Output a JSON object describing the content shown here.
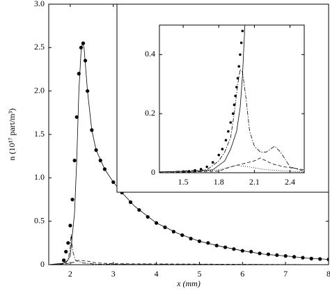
{
  "chart_data": [
    {
      "type": "line",
      "xlabel": "x (mm)",
      "ylabel": "n (10¹⁷ part/m³)",
      "xlim": [
        1.5,
        8
      ],
      "ylim": [
        0,
        3
      ],
      "xticks": [
        2,
        3,
        4,
        5,
        6,
        7,
        8
      ],
      "yticks": [
        0,
        0.5,
        {
          "value": 1,
          "label": "1.0"
        },
        1.5,
        {
          "value": 2,
          "label": "2.0"
        },
        2.5,
        {
          "value": 3,
          "label": "3.0"
        }
      ],
      "series": [
        {
          "style": "solid",
          "color": "#000000",
          "x": [
            1.5,
            1.9,
            2.0,
            2.1,
            2.15,
            2.2,
            2.25,
            2.28,
            2.32,
            2.4,
            2.5,
            2.6,
            2.8,
            3.0,
            3.2,
            3.5,
            4.0,
            4.5,
            5.0,
            5.5,
            6.0,
            6.5,
            7.0,
            7.5,
            8.0
          ],
          "values": [
            0,
            0.02,
            0.1,
            0.6,
            1.2,
            2.0,
            2.45,
            2.55,
            2.5,
            2.0,
            1.55,
            1.32,
            1.1,
            0.95,
            0.83,
            0.67,
            0.48,
            0.36,
            0.27,
            0.21,
            0.16,
            0.12,
            0.1,
            0.075,
            0.06
          ]
        },
        {
          "style": "dots",
          "color": "#000000",
          "x": [
            1.85,
            1.9,
            1.95,
            2.0,
            2.05,
            2.1,
            2.15,
            2.2,
            2.25,
            2.3,
            2.35,
            2.4,
            2.5,
            2.6,
            2.7,
            2.8,
            3.0,
            3.2,
            3.4,
            3.6,
            3.8,
            4.0,
            4.2,
            4.4,
            4.6,
            4.8,
            5.0,
            5.2,
            5.4,
            5.6,
            5.8,
            6.0,
            6.2,
            6.4,
            6.6,
            6.8,
            7.0,
            7.2,
            7.4,
            7.6,
            7.8,
            8.0
          ],
          "values": [
            0.05,
            0.15,
            0.25,
            0.45,
            0.75,
            1.2,
            1.7,
            2.2,
            2.5,
            2.55,
            2.35,
            2.0,
            1.55,
            1.32,
            1.2,
            1.1,
            0.95,
            0.83,
            0.72,
            0.63,
            0.55,
            0.48,
            0.43,
            0.38,
            0.34,
            0.3,
            0.27,
            0.25,
            0.22,
            0.2,
            0.18,
            0.16,
            0.15,
            0.13,
            0.12,
            0.11,
            0.1,
            0.09,
            0.08,
            0.07,
            0.065,
            0.06
          ]
        },
        {
          "style": "dashdot",
          "color": "#000000",
          "x": [
            1.5,
            1.8,
            1.95,
            2.0,
            2.02,
            2.06,
            2.12,
            2.3,
            2.6,
            8.0
          ],
          "values": [
            0,
            0.005,
            0.05,
            0.2,
            0.35,
            0.15,
            0.05,
            0.02,
            0.005,
            0
          ]
        },
        {
          "style": "dashed",
          "color": "#000000",
          "x": [
            1.5,
            1.9,
            2.1,
            2.2,
            2.4,
            2.6,
            3.0,
            8.0
          ],
          "values": [
            0,
            0.01,
            0.03,
            0.05,
            0.04,
            0.02,
            0.01,
            0
          ]
        }
      ]
    },
    {
      "type": "line",
      "xlim": [
        1.3,
        2.52
      ],
      "ylim": [
        0,
        0.5
      ],
      "xticks": [
        1.5,
        1.8,
        2.1,
        2.4
      ],
      "yticks": [
        0,
        0.2,
        0.4
      ],
      "series": [
        {
          "style": "solid",
          "color": "#000000",
          "x": [
            1.3,
            1.6,
            1.75,
            1.85,
            1.9,
            1.95,
            1.98,
            2.0,
            2.02,
            2.05
          ],
          "values": [
            0.003,
            0.005,
            0.01,
            0.04,
            0.08,
            0.14,
            0.22,
            0.33,
            0.5,
            0.7
          ]
        },
        {
          "style": "dots",
          "color": "#000000",
          "x": [
            1.55,
            1.6,
            1.65,
            1.7,
            1.75,
            1.8,
            1.83,
            1.86,
            1.88,
            1.9,
            1.92,
            1.93,
            1.94,
            1.95,
            1.96,
            1.97,
            1.98,
            1.99,
            2.0
          ],
          "values": [
            0.005,
            0.008,
            0.012,
            0.02,
            0.035,
            0.06,
            0.08,
            0.11,
            0.14,
            0.17,
            0.2,
            0.23,
            0.26,
            0.29,
            0.32,
            0.36,
            0.4,
            0.44,
            0.48
          ]
        },
        {
          "style": "dashdot",
          "color": "#000000",
          "x": [
            1.3,
            1.7,
            1.8,
            1.85,
            1.9,
            1.93,
            1.96,
            1.98,
            2.0,
            2.03,
            2.06,
            2.1,
            2.15,
            2.2,
            2.27,
            2.32,
            2.4,
            2.52
          ],
          "values": [
            0.002,
            0.01,
            0.04,
            0.07,
            0.12,
            0.2,
            0.3,
            0.35,
            0.34,
            0.25,
            0.14,
            0.09,
            0.07,
            0.07,
            0.09,
            0.07,
            0.02,
            0.005
          ]
        },
        {
          "style": "dashed",
          "color": "#000000",
          "x": [
            1.3,
            1.8,
            1.9,
            2.0,
            2.1,
            2.15,
            2.25,
            2.35,
            2.52
          ],
          "values": [
            0,
            0.005,
            0.02,
            0.03,
            0.04,
            0.05,
            0.03,
            0.02,
            0.01
          ]
        },
        {
          "style": "dotted",
          "color": "#000000",
          "x": [
            1.5,
            1.8,
            1.95,
            2.05,
            2.2,
            2.52
          ],
          "values": [
            0,
            0.01,
            0.025,
            0.02,
            0.01,
            0.002
          ]
        }
      ]
    }
  ]
}
